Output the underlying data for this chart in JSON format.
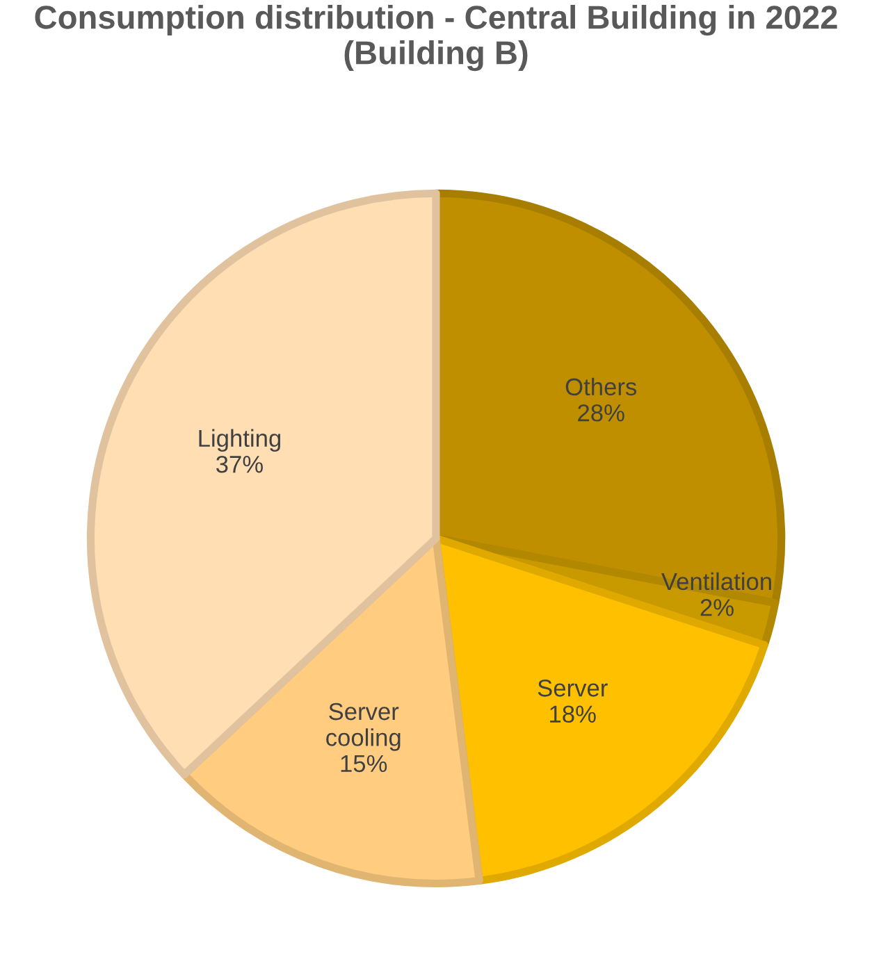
{
  "chart_data": {
    "type": "pie",
    "title": "Consumption distribution - Central Building in 2022 (Building B)",
    "categories": [
      "Others",
      "Ventilation",
      "Server",
      "Server cooling",
      "Lighting"
    ],
    "values": [
      28,
      2,
      18,
      15,
      37
    ],
    "colors": [
      "#bf8f00",
      "#c99a00",
      "#ffc000",
      "#ffcc80",
      "#ffdeb3"
    ],
    "value_labels": [
      "28%",
      "2%",
      "18%",
      "15%",
      "37%"
    ],
    "legend": false
  }
}
